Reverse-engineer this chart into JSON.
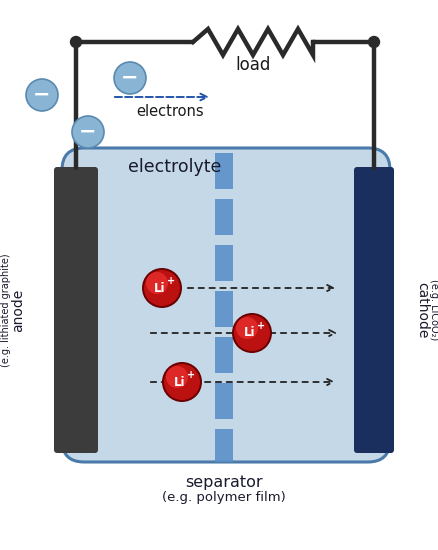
{
  "bg_color": "#ffffff",
  "electrolyte_color": "#c5d8e8",
  "electrolyte_border_color": "#4a7aaa",
  "separator_color": "#5b8fc9",
  "anode_color": "#3c3c3c",
  "cathode_color": "#1a2f5e",
  "wire_color": "#2a2a2a",
  "electron_color": "#89b4d4",
  "electron_border_color": "#5a8ab0",
  "dashed_color": "#2255aa",
  "title_text": "electrolyte",
  "separator_text": "separator",
  "separator_sub_text": "(e.g. polymer film)",
  "anode_text": "anode",
  "anode_sub_text": "(e.g. lithiated graphite)",
  "cathode_text": "cathode",
  "cathode_sub_text": "(e.g. LiCoO₂)",
  "load_text": "load",
  "electrons_text": "electrons",
  "fig_width": 4.39,
  "fig_height": 5.5,
  "dpi": 100
}
